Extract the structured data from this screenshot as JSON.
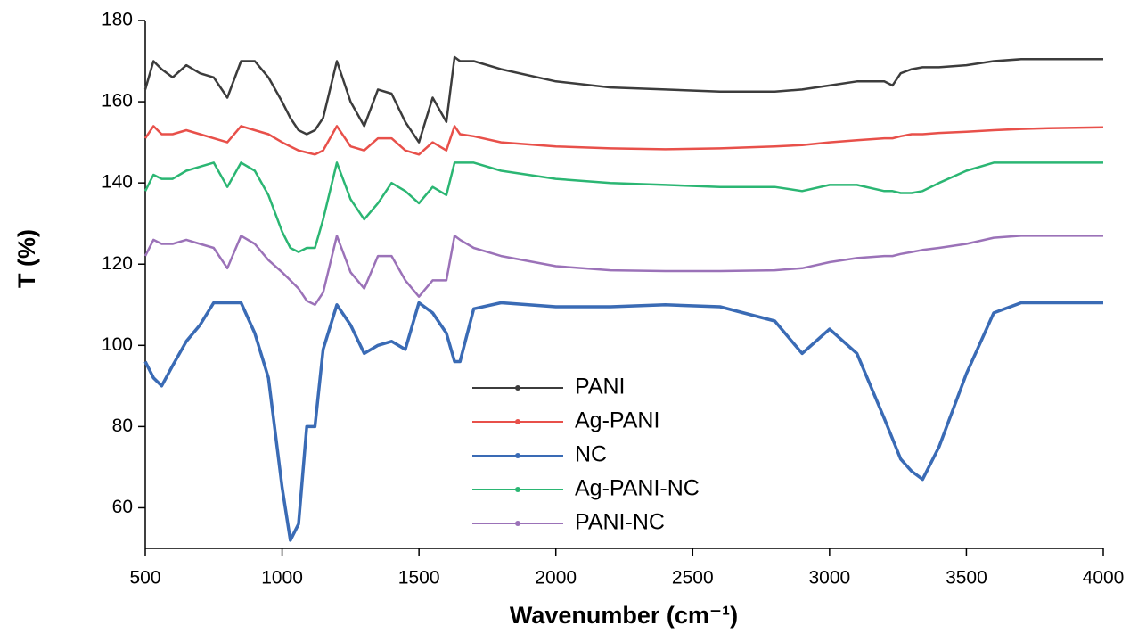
{
  "chart_data": {
    "type": "line",
    "x_label": "Wavenumber (cm⁻¹)",
    "y_label": "T (%)",
    "xlim": [
      500,
      4000
    ],
    "ylim": [
      50,
      180
    ],
    "xticks": [
      500,
      1000,
      1500,
      2000,
      2500,
      3000,
      3500,
      4000
    ],
    "yticks": [
      60,
      80,
      100,
      120,
      140,
      160,
      180
    ],
    "x": [
      500,
      530,
      560,
      600,
      650,
      700,
      750,
      800,
      850,
      900,
      950,
      1000,
      1030,
      1060,
      1090,
      1120,
      1150,
      1200,
      1250,
      1300,
      1350,
      1400,
      1450,
      1500,
      1550,
      1600,
      1630,
      1650,
      1700,
      1800,
      2000,
      2200,
      2400,
      2600,
      2800,
      2900,
      3000,
      3100,
      3200,
      3230,
      3260,
      3300,
      3340,
      3400,
      3500,
      3600,
      3700,
      3800,
      4000
    ],
    "series": [
      {
        "name": "PANI",
        "color": "#3c3c3c",
        "values": [
          163,
          170,
          168,
          166,
          169,
          167,
          166,
          161,
          170,
          170,
          166,
          160,
          156,
          153,
          152,
          153,
          156,
          170,
          160,
          154,
          163,
          162,
          155,
          150,
          161,
          155,
          171,
          170,
          170,
          168,
          165,
          163.5,
          163,
          162.5,
          162.5,
          163,
          164,
          165,
          165,
          164,
          167,
          168,
          168.5,
          168.5,
          169,
          170,
          170.5,
          170.5,
          170.5
        ]
      },
      {
        "name": "Ag-PANI",
        "color": "#e8504a",
        "values": [
          151,
          154,
          152,
          152,
          153,
          152,
          151,
          150,
          154,
          153,
          152,
          150,
          149,
          148,
          147.5,
          147,
          148,
          154,
          149,
          148,
          151,
          151,
          148,
          147,
          150,
          148,
          154,
          152,
          151.5,
          150,
          149,
          148.5,
          148.3,
          148.5,
          149,
          149.3,
          150,
          150.5,
          151,
          151,
          151.5,
          152,
          152,
          152.3,
          152.6,
          153,
          153.3,
          153.5,
          153.7
        ]
      },
      {
        "name": "NC",
        "color": "#3a6bb5",
        "values": [
          96,
          92,
          90,
          95,
          101,
          105,
          110.5,
          110.5,
          110.5,
          103,
          92,
          65,
          52,
          56,
          80,
          80,
          99,
          110,
          105,
          98,
          100,
          101,
          99,
          110.5,
          108,
          103,
          96,
          96,
          109,
          110.5,
          109.5,
          109.5,
          110,
          109.5,
          106,
          98,
          104,
          98,
          82,
          77,
          72,
          69,
          67,
          75,
          93,
          108,
          110.5,
          110.5,
          110.5
        ]
      },
      {
        "name": "Ag-PANI-NC",
        "color": "#2bb673",
        "values": [
          138,
          142,
          141,
          141,
          143,
          144,
          145,
          139,
          145,
          143,
          137,
          128,
          124,
          123,
          124,
          124,
          131,
          145,
          136,
          131,
          135,
          140,
          138,
          135,
          139,
          137,
          145,
          145,
          145,
          143,
          141,
          140,
          139.5,
          139,
          139,
          138,
          139.5,
          139.5,
          138,
          138,
          137.5,
          137.5,
          138,
          140,
          143,
          145,
          145,
          145,
          145
        ]
      },
      {
        "name": "PANI-NC",
        "color": "#9b72b8",
        "values": [
          122,
          126,
          125,
          125,
          126,
          125,
          124,
          119,
          127,
          125,
          121,
          118,
          116,
          114,
          111,
          110,
          113,
          127,
          118,
          114,
          122,
          122,
          116,
          112,
          116,
          116,
          127,
          126,
          124,
          122,
          119.5,
          118.5,
          118.3,
          118.3,
          118.5,
          119,
          120.5,
          121.5,
          122,
          122,
          122.5,
          123,
          123.5,
          124,
          125,
          126.5,
          127,
          127,
          127
        ]
      }
    ]
  }
}
